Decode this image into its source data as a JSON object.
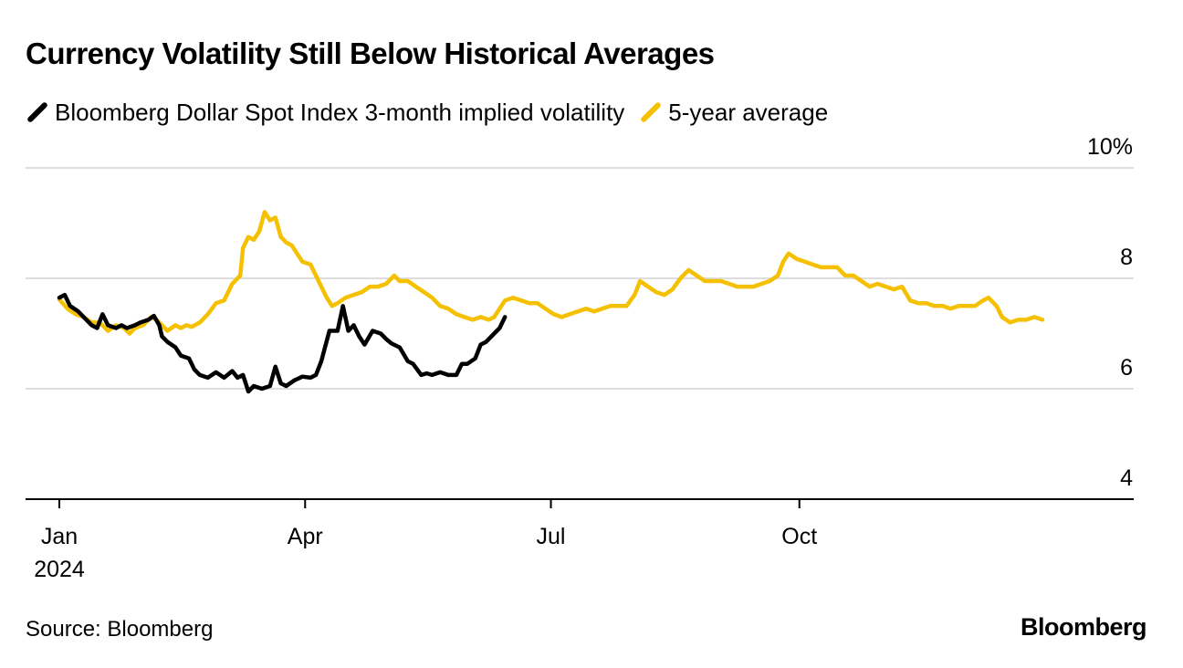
{
  "colors": {
    "series_current": "#000000",
    "series_average": "#f5c000",
    "grid": "#dddddd",
    "axis": "#000000"
  },
  "footer": {
    "source": "Source: Bloomberg",
    "brand": "Bloomberg"
  },
  "chart_data": {
    "type": "line",
    "title": "Currency Volatility Still Below Historical Averages",
    "xlabel": "",
    "ylabel": "",
    "ylim": [
      4,
      10
    ],
    "y_ticks": [
      {
        "value": 4,
        "label": "4"
      },
      {
        "value": 6,
        "label": "6"
      },
      {
        "value": 8,
        "label": "8"
      },
      {
        "value": 10,
        "label": "10%"
      }
    ],
    "x_range_days": [
      0,
      365
    ],
    "x_ticks": [
      {
        "day": 0,
        "label": "Jan",
        "sublabel": "2024"
      },
      {
        "day": 91,
        "label": "Apr",
        "sublabel": ""
      },
      {
        "day": 182,
        "label": "Jul",
        "sublabel": ""
      },
      {
        "day": 274,
        "label": "Oct",
        "sublabel": ""
      }
    ],
    "legend_position": "top-left",
    "series": [
      {
        "name": "Bloomberg Dollar Spot Index 3-month implied volatility",
        "color": "#000000",
        "points": [
          [
            0,
            7.65
          ],
          [
            2,
            7.7
          ],
          [
            4,
            7.5
          ],
          [
            7,
            7.4
          ],
          [
            10,
            7.25
          ],
          [
            12,
            7.15
          ],
          [
            14,
            7.1
          ],
          [
            16,
            7.35
          ],
          [
            18,
            7.15
          ],
          [
            21,
            7.1
          ],
          [
            23,
            7.15
          ],
          [
            25,
            7.1
          ],
          [
            28,
            7.15
          ],
          [
            30,
            7.2
          ],
          [
            33,
            7.25
          ],
          [
            35,
            7.32
          ],
          [
            37,
            7.15
          ],
          [
            38,
            6.95
          ],
          [
            40,
            6.85
          ],
          [
            43,
            6.75
          ],
          [
            45,
            6.6
          ],
          [
            48,
            6.55
          ],
          [
            50,
            6.35
          ],
          [
            52,
            6.25
          ],
          [
            55,
            6.2
          ],
          [
            58,
            6.3
          ],
          [
            61,
            6.2
          ],
          [
            64,
            6.32
          ],
          [
            66,
            6.2
          ],
          [
            68,
            6.25
          ],
          [
            70,
            5.95
          ],
          [
            72,
            6.05
          ],
          [
            75,
            6.0
          ],
          [
            78,
            6.05
          ],
          [
            80,
            6.4
          ],
          [
            82,
            6.1
          ],
          [
            84,
            6.05
          ],
          [
            87,
            6.15
          ],
          [
            90,
            6.22
          ],
          [
            93,
            6.2
          ],
          [
            95,
            6.25
          ],
          [
            97,
            6.5
          ],
          [
            100,
            7.05
          ],
          [
            103,
            7.05
          ],
          [
            105,
            7.5
          ],
          [
            107,
            7.05
          ],
          [
            109,
            7.15
          ],
          [
            111,
            6.95
          ],
          [
            113,
            6.8
          ],
          [
            116,
            7.05
          ],
          [
            119,
            7.0
          ],
          [
            121,
            6.9
          ],
          [
            123,
            6.82
          ],
          [
            126,
            6.75
          ],
          [
            129,
            6.5
          ],
          [
            131,
            6.45
          ],
          [
            134,
            6.25
          ],
          [
            136,
            6.28
          ],
          [
            138,
            6.25
          ],
          [
            141,
            6.3
          ],
          [
            144,
            6.25
          ],
          [
            147,
            6.25
          ],
          [
            149,
            6.45
          ],
          [
            151,
            6.45
          ],
          [
            154,
            6.55
          ],
          [
            156,
            6.8
          ],
          [
            158,
            6.85
          ],
          [
            161,
            7.0
          ],
          [
            163,
            7.1
          ],
          [
            165,
            7.3
          ]
        ]
      },
      {
        "name": "5-year average",
        "color": "#f5c000",
        "points": [
          [
            0,
            7.62
          ],
          [
            3,
            7.45
          ],
          [
            6,
            7.35
          ],
          [
            9,
            7.3
          ],
          [
            12,
            7.2
          ],
          [
            15,
            7.2
          ],
          [
            18,
            7.05
          ],
          [
            21,
            7.15
          ],
          [
            24,
            7.1
          ],
          [
            26,
            7.0
          ],
          [
            28,
            7.1
          ],
          [
            31,
            7.15
          ],
          [
            34,
            7.3
          ],
          [
            36,
            7.25
          ],
          [
            38,
            7.15
          ],
          [
            40,
            7.05
          ],
          [
            43,
            7.15
          ],
          [
            45,
            7.1
          ],
          [
            47,
            7.15
          ],
          [
            49,
            7.12
          ],
          [
            52,
            7.2
          ],
          [
            55,
            7.35
          ],
          [
            58,
            7.55
          ],
          [
            61,
            7.6
          ],
          [
            64,
            7.9
          ],
          [
            67,
            8.05
          ],
          [
            68,
            8.55
          ],
          [
            70,
            8.75
          ],
          [
            72,
            8.7
          ],
          [
            74,
            8.85
          ],
          [
            76,
            9.2
          ],
          [
            78,
            9.05
          ],
          [
            80,
            9.1
          ],
          [
            82,
            8.75
          ],
          [
            84,
            8.65
          ],
          [
            86,
            8.6
          ],
          [
            88,
            8.45
          ],
          [
            90,
            8.3
          ],
          [
            93,
            8.25
          ],
          [
            95,
            8.05
          ],
          [
            97,
            7.85
          ],
          [
            99,
            7.65
          ],
          [
            101,
            7.5
          ],
          [
            103,
            7.55
          ],
          [
            106,
            7.65
          ],
          [
            109,
            7.7
          ],
          [
            112,
            7.75
          ],
          [
            115,
            7.85
          ],
          [
            118,
            7.85
          ],
          [
            121,
            7.9
          ],
          [
            124,
            8.05
          ],
          [
            126,
            7.95
          ],
          [
            129,
            7.95
          ],
          [
            132,
            7.85
          ],
          [
            135,
            7.75
          ],
          [
            138,
            7.65
          ],
          [
            141,
            7.5
          ],
          [
            144,
            7.45
          ],
          [
            147,
            7.35
          ],
          [
            150,
            7.3
          ],
          [
            153,
            7.25
          ],
          [
            156,
            7.3
          ],
          [
            159,
            7.25
          ],
          [
            161,
            7.3
          ],
          [
            163,
            7.45
          ],
          [
            165,
            7.6
          ],
          [
            168,
            7.65
          ],
          [
            171,
            7.6
          ],
          [
            174,
            7.55
          ],
          [
            177,
            7.55
          ],
          [
            180,
            7.45
          ],
          [
            183,
            7.35
          ],
          [
            186,
            7.3
          ],
          [
            189,
            7.35
          ],
          [
            192,
            7.4
          ],
          [
            195,
            7.45
          ],
          [
            198,
            7.4
          ],
          [
            201,
            7.45
          ],
          [
            204,
            7.5
          ],
          [
            207,
            7.5
          ],
          [
            210,
            7.5
          ],
          [
            213,
            7.7
          ],
          [
            215,
            7.95
          ],
          [
            218,
            7.85
          ],
          [
            221,
            7.75
          ],
          [
            224,
            7.7
          ],
          [
            227,
            7.8
          ],
          [
            230,
            8.0
          ],
          [
            233,
            8.15
          ],
          [
            236,
            8.05
          ],
          [
            239,
            7.95
          ],
          [
            242,
            7.95
          ],
          [
            245,
            7.95
          ],
          [
            248,
            7.9
          ],
          [
            251,
            7.85
          ],
          [
            254,
            7.85
          ],
          [
            257,
            7.85
          ],
          [
            260,
            7.9
          ],
          [
            263,
            7.95
          ],
          [
            266,
            8.05
          ],
          [
            268,
            8.3
          ],
          [
            270,
            8.45
          ],
          [
            273,
            8.35
          ],
          [
            276,
            8.3
          ],
          [
            279,
            8.25
          ],
          [
            282,
            8.2
          ],
          [
            285,
            8.2
          ],
          [
            288,
            8.2
          ],
          [
            291,
            8.05
          ],
          [
            294,
            8.05
          ],
          [
            297,
            7.95
          ],
          [
            300,
            7.85
          ],
          [
            303,
            7.9
          ],
          [
            306,
            7.85
          ],
          [
            309,
            7.8
          ],
          [
            312,
            7.85
          ],
          [
            315,
            7.6
          ],
          [
            318,
            7.55
          ],
          [
            321,
            7.55
          ],
          [
            324,
            7.5
          ],
          [
            327,
            7.5
          ],
          [
            330,
            7.45
          ],
          [
            333,
            7.5
          ],
          [
            336,
            7.5
          ],
          [
            339,
            7.5
          ],
          [
            342,
            7.6
          ],
          [
            344,
            7.65
          ],
          [
            347,
            7.5
          ],
          [
            349,
            7.3
          ],
          [
            352,
            7.2
          ],
          [
            355,
            7.25
          ],
          [
            358,
            7.25
          ],
          [
            361,
            7.3
          ],
          [
            364,
            7.25
          ]
        ]
      }
    ]
  }
}
